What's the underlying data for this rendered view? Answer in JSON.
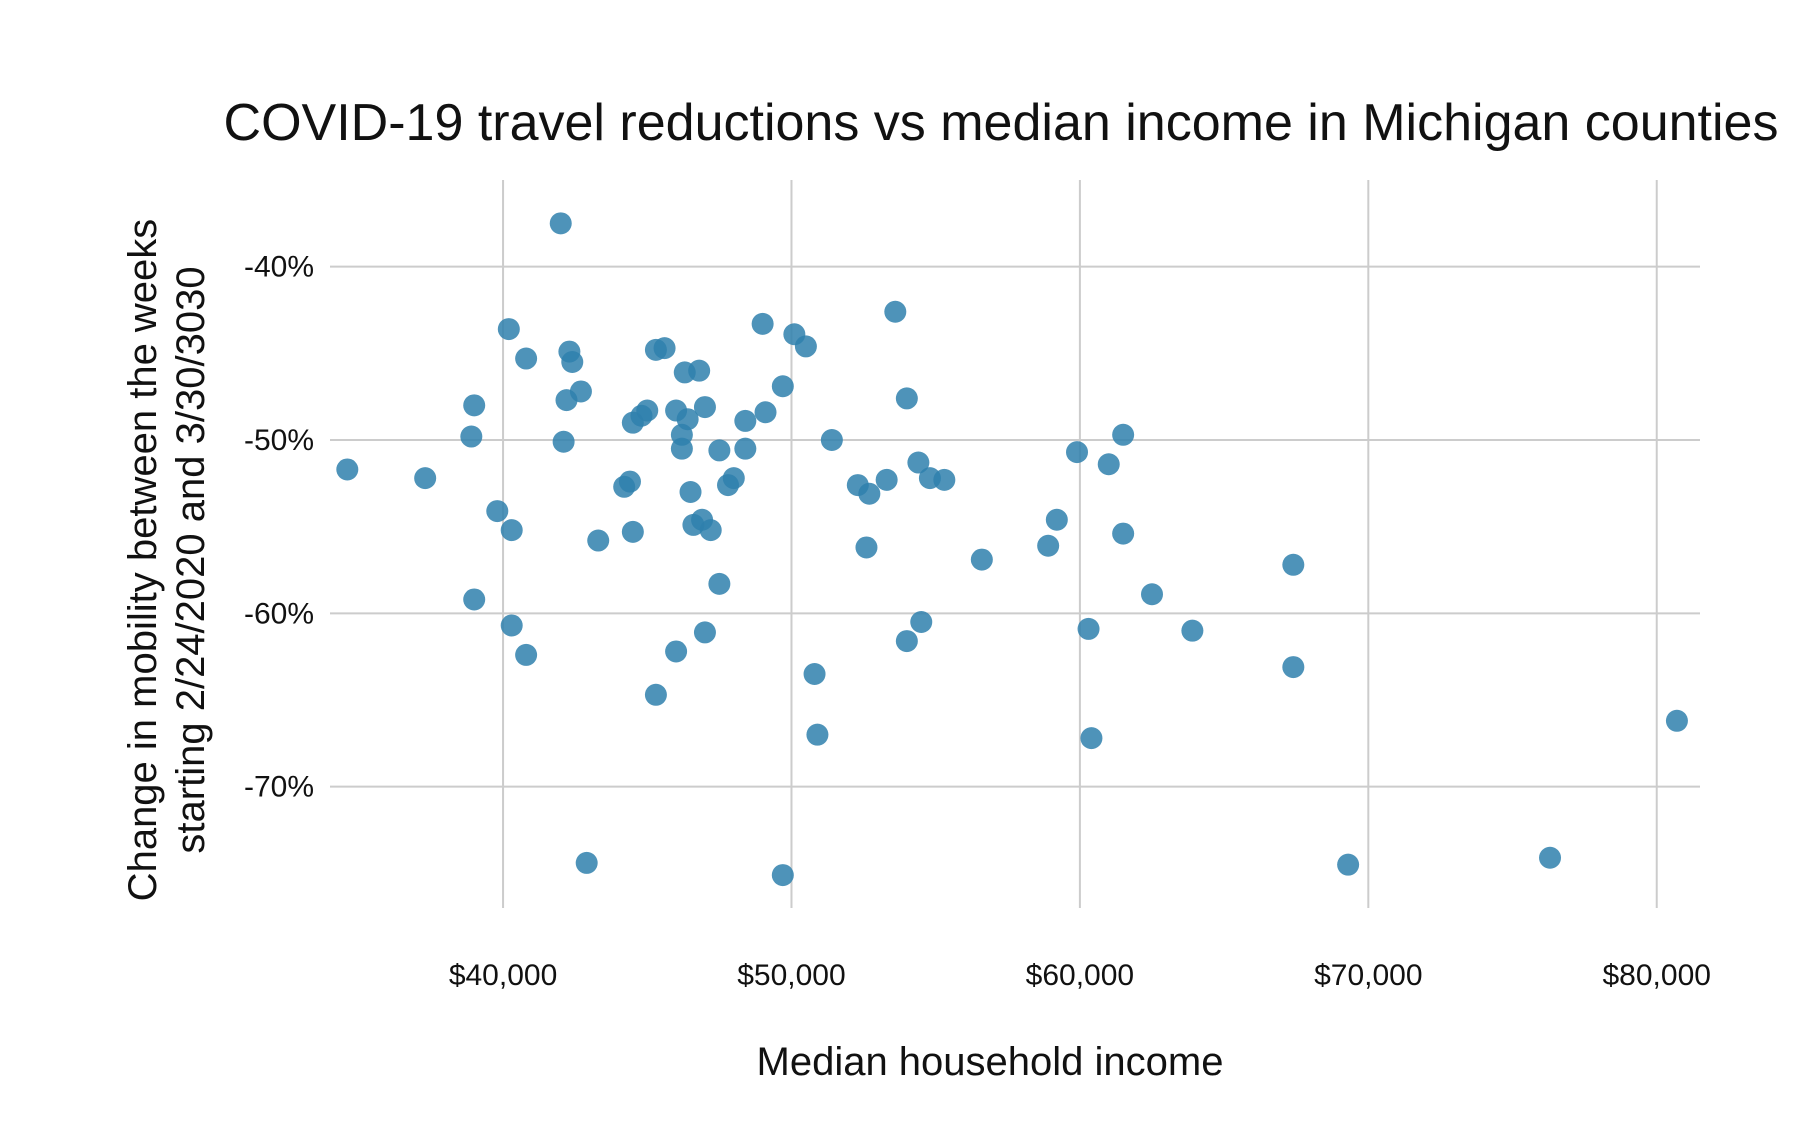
{
  "chart_data": {
    "type": "scatter",
    "title": "COVID-19 travel reductions vs median income in Michigan counties",
    "xlabel": "Median household income",
    "ylabel_lines": [
      "Change in mobility between the weeks",
      "starting 2/24/2020 and 3/30/3030"
    ],
    "x_ticks": [
      {
        "value": 40000,
        "label": "$40,000"
      },
      {
        "value": 50000,
        "label": "$50,000"
      },
      {
        "value": 60000,
        "label": "$60,000"
      },
      {
        "value": 70000,
        "label": "$70,000"
      },
      {
        "value": 80000,
        "label": "$80,000"
      }
    ],
    "y_ticks": [
      {
        "value": -40,
        "label": "-40%"
      },
      {
        "value": -50,
        "label": "-50%"
      },
      {
        "value": -60,
        "label": "-60%"
      },
      {
        "value": -70,
        "label": "-70%"
      }
    ],
    "xlim": [
      34000,
      81500
    ],
    "ylim": [
      -77,
      -35
    ],
    "grid": true,
    "points": [
      {
        "x": 34600,
        "y": -51.7
      },
      {
        "x": 37300,
        "y": -52.2
      },
      {
        "x": 38900,
        "y": -49.8
      },
      {
        "x": 39000,
        "y": -48.0
      },
      {
        "x": 39000,
        "y": -59.2
      },
      {
        "x": 39800,
        "y": -54.1
      },
      {
        "x": 40200,
        "y": -43.6
      },
      {
        "x": 40300,
        "y": -55.2
      },
      {
        "x": 40300,
        "y": -60.7
      },
      {
        "x": 40800,
        "y": -45.3
      },
      {
        "x": 40800,
        "y": -62.4
      },
      {
        "x": 42000,
        "y": -37.5
      },
      {
        "x": 42100,
        "y": -50.1
      },
      {
        "x": 42200,
        "y": -47.7
      },
      {
        "x": 42300,
        "y": -44.9
      },
      {
        "x": 42400,
        "y": -45.5
      },
      {
        "x": 42700,
        "y": -47.2
      },
      {
        "x": 42900,
        "y": -74.4
      },
      {
        "x": 43300,
        "y": -55.8
      },
      {
        "x": 44200,
        "y": -52.7
      },
      {
        "x": 44400,
        "y": -52.4
      },
      {
        "x": 44500,
        "y": -55.3
      },
      {
        "x": 44500,
        "y": -49.0
      },
      {
        "x": 44800,
        "y": -48.6
      },
      {
        "x": 45000,
        "y": -48.3
      },
      {
        "x": 45300,
        "y": -64.7
      },
      {
        "x": 45300,
        "y": -44.8
      },
      {
        "x": 45600,
        "y": -44.7
      },
      {
        "x": 46000,
        "y": -48.3
      },
      {
        "x": 46000,
        "y": -62.2
      },
      {
        "x": 46200,
        "y": -49.7
      },
      {
        "x": 46200,
        "y": -50.5
      },
      {
        "x": 46300,
        "y": -46.1
      },
      {
        "x": 46400,
        "y": -48.8
      },
      {
        "x": 46500,
        "y": -53.0
      },
      {
        "x": 46600,
        "y": -54.9
      },
      {
        "x": 46800,
        "y": -46.0
      },
      {
        "x": 46900,
        "y": -54.6
      },
      {
        "x": 47000,
        "y": -48.1
      },
      {
        "x": 47000,
        "y": -61.1
      },
      {
        "x": 47200,
        "y": -55.2
      },
      {
        "x": 47500,
        "y": -50.6
      },
      {
        "x": 47500,
        "y": -58.3
      },
      {
        "x": 47800,
        "y": -52.6
      },
      {
        "x": 48000,
        "y": -52.2
      },
      {
        "x": 48400,
        "y": -50.5
      },
      {
        "x": 48400,
        "y": -48.9
      },
      {
        "x": 49000,
        "y": -43.3
      },
      {
        "x": 49100,
        "y": -48.4
      },
      {
        "x": 49700,
        "y": -46.9
      },
      {
        "x": 49700,
        "y": -75.1
      },
      {
        "x": 50100,
        "y": -43.9
      },
      {
        "x": 50500,
        "y": -44.6
      },
      {
        "x": 50800,
        "y": -63.5
      },
      {
        "x": 50900,
        "y": -67.0
      },
      {
        "x": 51400,
        "y": -50.0
      },
      {
        "x": 52300,
        "y": -52.6
      },
      {
        "x": 52600,
        "y": -56.2
      },
      {
        "x": 52700,
        "y": -53.1
      },
      {
        "x": 53300,
        "y": -52.3
      },
      {
        "x": 53600,
        "y": -42.6
      },
      {
        "x": 54000,
        "y": -47.6
      },
      {
        "x": 54000,
        "y": -61.6
      },
      {
        "x": 54400,
        "y": -51.3
      },
      {
        "x": 54500,
        "y": -60.5
      },
      {
        "x": 54800,
        "y": -52.2
      },
      {
        "x": 55300,
        "y": -52.3
      },
      {
        "x": 56600,
        "y": -56.9
      },
      {
        "x": 58900,
        "y": -56.1
      },
      {
        "x": 59200,
        "y": -54.6
      },
      {
        "x": 59900,
        "y": -50.7
      },
      {
        "x": 60300,
        "y": -60.9
      },
      {
        "x": 60400,
        "y": -67.2
      },
      {
        "x": 61000,
        "y": -51.4
      },
      {
        "x": 61500,
        "y": -49.7
      },
      {
        "x": 61500,
        "y": -55.4
      },
      {
        "x": 62500,
        "y": -58.9
      },
      {
        "x": 63900,
        "y": -61.0
      },
      {
        "x": 67400,
        "y": -57.2
      },
      {
        "x": 67400,
        "y": -63.1
      },
      {
        "x": 69300,
        "y": -74.5
      },
      {
        "x": 76300,
        "y": -74.1
      },
      {
        "x": 80700,
        "y": -66.2
      }
    ]
  }
}
